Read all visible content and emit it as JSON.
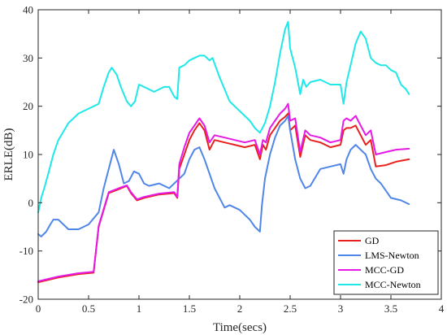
{
  "chart_data": {
    "type": "line",
    "xlabel": "Time(secs)",
    "ylabel": "ERLE(dB)",
    "xlim": [
      0,
      4
    ],
    "ylim": [
      -20,
      40
    ],
    "xticks": [
      0,
      0.5,
      1,
      1.5,
      2,
      2.5,
      3,
      3.5,
      4
    ],
    "yticks": [
      -20,
      -10,
      0,
      10,
      20,
      30,
      40
    ],
    "xtick_labels": [
      "0",
      "0.5",
      "1",
      "1.5",
      "2",
      "2.5",
      "3",
      "3.5",
      "4"
    ],
    "ytick_labels": [
      "-20",
      "-10",
      "0",
      "10",
      "20",
      "30",
      "40"
    ],
    "grid": false,
    "legend_position": "bottom-right",
    "series": [
      {
        "name": "GD",
        "color": "#e8211f",
        "x": [
          0,
          0.2,
          0.4,
          0.55,
          0.6,
          0.7,
          0.8,
          0.88,
          0.92,
          0.98,
          1.05,
          1.2,
          1.35,
          1.38,
          1.4,
          1.45,
          1.5,
          1.55,
          1.6,
          1.65,
          1.7,
          1.75,
          1.85,
          1.95,
          2.05,
          2.15,
          2.2,
          2.23,
          2.26,
          2.3,
          2.35,
          2.4,
          2.45,
          2.48,
          2.5,
          2.55,
          2.6,
          2.65,
          2.7,
          2.8,
          2.9,
          3.0,
          3.03,
          3.06,
          3.1,
          3.15,
          3.2,
          3.25,
          3.3,
          3.35,
          3.45,
          3.55,
          3.68
        ],
        "y": [
          -16.5,
          -15.5,
          -14.8,
          -14.5,
          -5,
          2,
          2.8,
          3.5,
          2,
          0.5,
          1,
          1.7,
          2,
          1,
          7,
          10,
          13,
          15,
          16.5,
          15,
          11,
          13,
          12.5,
          12,
          11.5,
          12,
          9,
          12,
          11,
          14,
          15.5,
          17,
          17.8,
          18.5,
          15,
          16,
          9.5,
          14,
          13,
          12.5,
          11.5,
          12,
          15,
          15.5,
          15.5,
          16,
          14,
          12,
          13,
          7.5,
          7.8,
          8.5,
          9
        ]
      },
      {
        "name": "LMS-Newton",
        "color": "#4f86e8",
        "x": [
          0,
          0.03,
          0.08,
          0.12,
          0.15,
          0.2,
          0.3,
          0.4,
          0.5,
          0.6,
          0.65,
          0.7,
          0.75,
          0.8,
          0.85,
          0.9,
          0.95,
          1.0,
          1.05,
          1.1,
          1.2,
          1.3,
          1.4,
          1.45,
          1.5,
          1.55,
          1.6,
          1.65,
          1.7,
          1.75,
          1.8,
          1.85,
          1.9,
          2.0,
          2.1,
          2.15,
          2.2,
          2.22,
          2.25,
          2.3,
          2.35,
          2.4,
          2.45,
          2.48,
          2.5,
          2.55,
          2.6,
          2.65,
          2.7,
          2.8,
          2.9,
          3.0,
          3.03,
          3.06,
          3.1,
          3.15,
          3.2,
          3.25,
          3.3,
          3.35,
          3.4,
          3.5,
          3.6,
          3.68
        ],
        "y": [
          -6.5,
          -7,
          -6,
          -4.5,
          -3.5,
          -3.5,
          -5.5,
          -5.5,
          -4.5,
          -2,
          3,
          7,
          11,
          8,
          4,
          4.5,
          6.5,
          6,
          4,
          3.5,
          4,
          3,
          5,
          6,
          9,
          11,
          11.5,
          9,
          6,
          3,
          1,
          -1,
          -0.5,
          -1.5,
          -3.5,
          -5,
          -6,
          -0.5,
          5,
          10,
          13.5,
          16,
          17,
          18,
          15,
          9,
          5,
          3,
          3.5,
          7,
          7.5,
          8,
          6,
          9,
          11,
          12,
          11,
          10,
          7,
          5,
          4,
          1,
          0.5,
          -0.3
        ]
      },
      {
        "name": "MCC-GD",
        "color": "#e619e6",
        "x": [
          0,
          0.2,
          0.4,
          0.55,
          0.6,
          0.7,
          0.8,
          0.88,
          0.92,
          0.98,
          1.05,
          1.2,
          1.35,
          1.38,
          1.4,
          1.45,
          1.5,
          1.55,
          1.6,
          1.65,
          1.7,
          1.75,
          1.85,
          1.95,
          2.05,
          2.15,
          2.2,
          2.23,
          2.26,
          2.3,
          2.35,
          2.4,
          2.45,
          2.48,
          2.5,
          2.55,
          2.6,
          2.65,
          2.7,
          2.8,
          2.9,
          3.0,
          3.03,
          3.06,
          3.1,
          3.15,
          3.2,
          3.25,
          3.3,
          3.35,
          3.45,
          3.55,
          3.68
        ],
        "y": [
          -16.3,
          -15.3,
          -14.6,
          -14.3,
          -4.8,
          2.2,
          3,
          3.6,
          2.2,
          0.7,
          1.2,
          1.9,
          2.2,
          1.2,
          8,
          11.5,
          14.5,
          16,
          17.5,
          16,
          12.5,
          14,
          13.5,
          13,
          12.5,
          13,
          10,
          13,
          12.5,
          15.5,
          17,
          18.5,
          19.5,
          20.5,
          17,
          17.5,
          10.5,
          15,
          14,
          13.5,
          12.5,
          13,
          17,
          17.5,
          17,
          18,
          16,
          14,
          15,
          10,
          10.5,
          11,
          11.2
        ]
      },
      {
        "name": "MCC-Newton",
        "color": "#1fe8e8",
        "x": [
          0,
          0.03,
          0.06,
          0.1,
          0.15,
          0.2,
          0.3,
          0.4,
          0.5,
          0.55,
          0.6,
          0.65,
          0.7,
          0.73,
          0.78,
          0.82,
          0.88,
          0.92,
          0.96,
          1.0,
          1.05,
          1.1,
          1.15,
          1.2,
          1.25,
          1.3,
          1.35,
          1.38,
          1.4,
          1.45,
          1.5,
          1.55,
          1.6,
          1.65,
          1.7,
          1.73,
          1.8,
          1.9,
          2.0,
          2.1,
          2.15,
          2.2,
          2.25,
          2.3,
          2.35,
          2.4,
          2.45,
          2.48,
          2.5,
          2.55,
          2.6,
          2.63,
          2.66,
          2.7,
          2.8,
          2.9,
          3.0,
          3.03,
          3.06,
          3.1,
          3.15,
          3.2,
          3.25,
          3.3,
          3.35,
          3.4,
          3.45,
          3.5,
          3.55,
          3.6,
          3.65,
          3.68
        ],
        "y": [
          -2,
          1,
          3,
          6,
          10,
          13,
          16.5,
          18.5,
          19.5,
          20,
          20.5,
          24,
          27,
          28,
          26.5,
          24,
          21,
          20,
          21,
          24.5,
          24,
          23.5,
          23,
          23.5,
          24,
          24,
          22,
          21.5,
          28,
          28.5,
          29.5,
          30,
          30.5,
          30.5,
          29.5,
          30,
          26,
          21,
          19,
          17,
          15.5,
          14.5,
          16.5,
          20,
          25,
          31,
          36,
          37.5,
          32,
          28,
          22.5,
          25.5,
          24,
          25,
          25.5,
          24.5,
          24.5,
          20.5,
          25,
          28.5,
          33,
          35.5,
          34,
          30,
          29,
          28.5,
          28.5,
          27.5,
          27,
          24.5,
          23.5,
          22.5
        ]
      }
    ]
  }
}
